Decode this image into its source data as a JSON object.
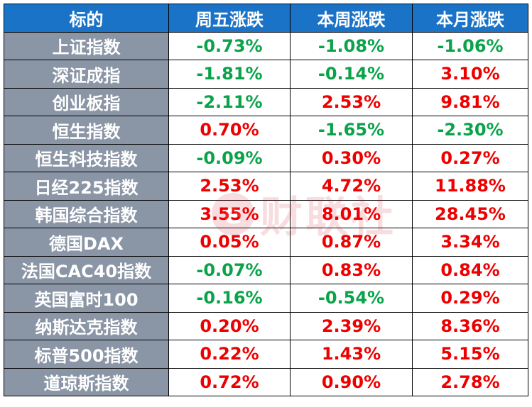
{
  "headers": [
    "标的",
    "周五涨跌",
    "本周涨跌",
    "本月涨跌"
  ],
  "colors": {
    "header_bg": "#1a73c6",
    "name_bg": "#8a95a5",
    "up": "#ee0000",
    "down": "#0aa34a"
  },
  "watermark": {
    "icon": "e",
    "text": "财联社"
  },
  "rows": [
    {
      "name": "上证指数",
      "values": [
        {
          "text": "-0.73%",
          "dir": "down"
        },
        {
          "text": "-1.08%",
          "dir": "down"
        },
        {
          "text": "-1.06%",
          "dir": "down"
        }
      ]
    },
    {
      "name": "深证成指",
      "values": [
        {
          "text": "-1.81%",
          "dir": "down"
        },
        {
          "text": "-0.14%",
          "dir": "down"
        },
        {
          "text": "3.10%",
          "dir": "up"
        }
      ]
    },
    {
      "name": "创业板指",
      "values": [
        {
          "text": "-2.11%",
          "dir": "down"
        },
        {
          "text": "2.53%",
          "dir": "up"
        },
        {
          "text": "9.81%",
          "dir": "up"
        }
      ]
    },
    {
      "name": "恒生指数",
      "values": [
        {
          "text": "0.70%",
          "dir": "up"
        },
        {
          "text": "-1.65%",
          "dir": "down"
        },
        {
          "text": "-2.30%",
          "dir": "down"
        }
      ]
    },
    {
      "name": "恒生科技指数",
      "values": [
        {
          "text": "-0.09%",
          "dir": "down"
        },
        {
          "text": "0.30%",
          "dir": "up"
        },
        {
          "text": "0.27%",
          "dir": "up"
        }
      ]
    },
    {
      "name": "日经225指数",
      "values": [
        {
          "text": "2.53%",
          "dir": "up"
        },
        {
          "text": "4.72%",
          "dir": "up"
        },
        {
          "text": "11.88%",
          "dir": "up"
        }
      ]
    },
    {
      "name": "韩国综合指数",
      "values": [
        {
          "text": "3.55%",
          "dir": "up"
        },
        {
          "text": "8.01%",
          "dir": "up"
        },
        {
          "text": "28.45%",
          "dir": "up"
        }
      ]
    },
    {
      "name": "德国DAX",
      "values": [
        {
          "text": "0.05%",
          "dir": "up"
        },
        {
          "text": "0.87%",
          "dir": "up"
        },
        {
          "text": "3.34%",
          "dir": "up"
        }
      ]
    },
    {
      "name": "法国CAC40指数",
      "values": [
        {
          "text": "-0.07%",
          "dir": "down"
        },
        {
          "text": "0.83%",
          "dir": "up"
        },
        {
          "text": "0.84%",
          "dir": "up"
        }
      ]
    },
    {
      "name": "英国富时100",
      "values": [
        {
          "text": "-0.16%",
          "dir": "down"
        },
        {
          "text": "-0.54%",
          "dir": "down"
        },
        {
          "text": "0.29%",
          "dir": "up"
        }
      ]
    },
    {
      "name": "纳斯达克指数",
      "values": [
        {
          "text": "0.20%",
          "dir": "up"
        },
        {
          "text": "2.39%",
          "dir": "up"
        },
        {
          "text": "8.36%",
          "dir": "up"
        }
      ]
    },
    {
      "name": "标普500指数",
      "values": [
        {
          "text": "0.22%",
          "dir": "up"
        },
        {
          "text": "1.43%",
          "dir": "up"
        },
        {
          "text": "5.15%",
          "dir": "up"
        }
      ]
    },
    {
      "name": "道琼斯指数",
      "values": [
        {
          "text": "0.72%",
          "dir": "up"
        },
        {
          "text": "0.90%",
          "dir": "up"
        },
        {
          "text": "2.78%",
          "dir": "up"
        }
      ]
    }
  ]
}
